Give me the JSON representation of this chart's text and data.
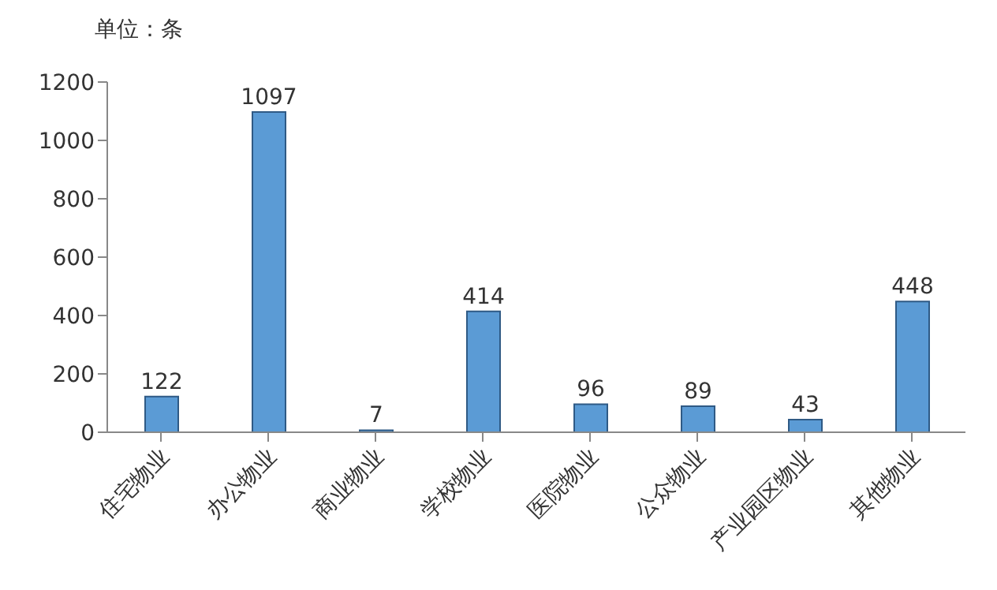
{
  "chart_data": {
    "type": "bar",
    "ylabel": "单位：条",
    "categories": [
      "住宅物业",
      "办公物业",
      "商业物业",
      "学校物业",
      "医院物业",
      "公众物业",
      "产业园区物业",
      "其他物业"
    ],
    "values": [
      122,
      1097,
      7,
      414,
      96,
      89,
      43,
      448
    ],
    "color": "#5b9bd5",
    "ylim": [
      0,
      1200
    ],
    "yticks": [
      0,
      200,
      400,
      600,
      800,
      1000,
      1200
    ],
    "grid": false,
    "data_labels": true
  }
}
